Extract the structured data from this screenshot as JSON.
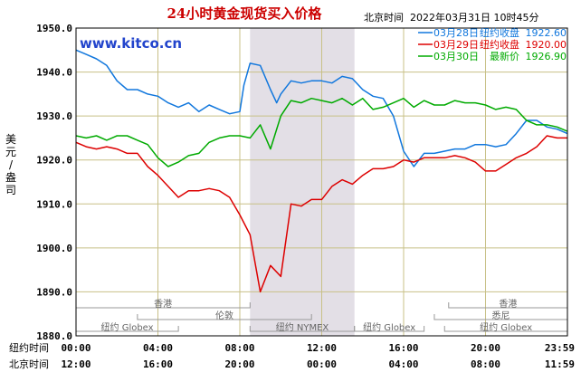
{
  "chart_data": {
    "type": "line",
    "title": "24小时黄金现货买入价格",
    "datetime": "北京时间  2022年03月31日 10时45分",
    "brand": "www.kitco.cn",
    "ylabel": "美元/盎司",
    "ylim": [
      1880,
      1950
    ],
    "y_ticks": [
      "1950.0",
      "1940.0",
      "1930.0",
      "1920.0",
      "1910.0",
      "1900.0",
      "1890.0",
      "1880.0"
    ],
    "x_ticks": [
      0,
      4,
      8,
      12,
      16,
      20,
      24
    ],
    "x_row_labels": [
      "纽约时间",
      "北京时间"
    ],
    "x_tick_labels_ny": [
      "00:00",
      "04:00",
      "08:00",
      "12:00",
      "16:00",
      "20:00",
      "23:59"
    ],
    "x_tick_labels_bj": [
      "12:00",
      "16:00",
      "20:00",
      "00:00",
      "04:00",
      "08:00",
      "11:59"
    ],
    "shaded_range_ny_hours": [
      8.5,
      13.6
    ],
    "grid": true,
    "legend_position": "top-right",
    "markets": [
      {
        "name": "香港",
        "start": 0,
        "end": 8.5,
        "row": 0
      },
      {
        "name": "伦敦",
        "start": 3,
        "end": 11.5,
        "row": 1
      },
      {
        "name": "纽约 Globex",
        "start": 0,
        "end": 5,
        "row": 2
      },
      {
        "name": "纽约 NYMEX",
        "start": 8.5,
        "end": 13.6,
        "row": 2
      },
      {
        "name": "纽约 Globex",
        "start": 13.6,
        "end": 17,
        "row": 2
      },
      {
        "name": "香港",
        "start": 18.2,
        "end": 24,
        "row": 0
      },
      {
        "name": "悉尼",
        "start": 17.5,
        "end": 24,
        "row": 1
      },
      {
        "name": "纽约 Globex",
        "start": 18,
        "end": 24,
        "row": 2
      }
    ],
    "series": [
      {
        "name": "03月28日",
        "legend_caption": "纽约收盘",
        "legend_value": "1922.60",
        "color": "#1177dd",
        "points": [
          [
            0,
            1945
          ],
          [
            0.5,
            1944
          ],
          [
            1,
            1943
          ],
          [
            1.5,
            1941.5
          ],
          [
            2,
            1938
          ],
          [
            2.5,
            1936
          ],
          [
            3,
            1936
          ],
          [
            3.5,
            1935
          ],
          [
            4,
            1934.5
          ],
          [
            4.5,
            1933
          ],
          [
            5,
            1932
          ],
          [
            5.5,
            1933
          ],
          [
            6,
            1931
          ],
          [
            6.5,
            1932.5
          ],
          [
            7,
            1931.5
          ],
          [
            7.5,
            1930.5
          ],
          [
            8,
            1931
          ],
          [
            8.2,
            1937
          ],
          [
            8.5,
            1942
          ],
          [
            9,
            1941.5
          ],
          [
            9.5,
            1936
          ],
          [
            9.8,
            1933
          ],
          [
            10,
            1935
          ],
          [
            10.5,
            1938
          ],
          [
            11,
            1937.5
          ],
          [
            11.5,
            1938
          ],
          [
            12,
            1938
          ],
          [
            12.5,
            1937.5
          ],
          [
            13,
            1939
          ],
          [
            13.5,
            1938.5
          ],
          [
            14,
            1936
          ],
          [
            14.5,
            1934.5
          ],
          [
            15,
            1934
          ],
          [
            15.5,
            1930
          ],
          [
            16,
            1922
          ],
          [
            16.5,
            1918.5
          ],
          [
            17,
            1921.5
          ],
          [
            17.5,
            1921.5
          ],
          [
            18,
            1922
          ],
          [
            18.5,
            1922.5
          ],
          [
            19,
            1922.5
          ],
          [
            19.5,
            1923.5
          ],
          [
            20,
            1923.5
          ],
          [
            20.5,
            1923
          ],
          [
            21,
            1923.5
          ],
          [
            21.5,
            1926
          ],
          [
            22,
            1929
          ],
          [
            22.5,
            1929
          ],
          [
            23,
            1927.5
          ],
          [
            23.5,
            1927
          ],
          [
            24,
            1926
          ]
        ]
      },
      {
        "name": "03月29日",
        "legend_caption": "纽约收盘",
        "legend_value": "1920.00",
        "color": "#dd0000",
        "points": [
          [
            0,
            1924
          ],
          [
            0.5,
            1923
          ],
          [
            1,
            1922.5
          ],
          [
            1.5,
            1923
          ],
          [
            2,
            1922.5
          ],
          [
            2.5,
            1921.5
          ],
          [
            3,
            1921.5
          ],
          [
            3.5,
            1918.5
          ],
          [
            4,
            1916.5
          ],
          [
            4.5,
            1914
          ],
          [
            5,
            1911.5
          ],
          [
            5.5,
            1913
          ],
          [
            6,
            1913
          ],
          [
            6.5,
            1913.5
          ],
          [
            7,
            1913
          ],
          [
            7.5,
            1911.5
          ],
          [
            8,
            1907.5
          ],
          [
            8.5,
            1903
          ],
          [
            9,
            1890
          ],
          [
            9.5,
            1896
          ],
          [
            10,
            1893.5
          ],
          [
            10.5,
            1910
          ],
          [
            11,
            1909.5
          ],
          [
            11.5,
            1911
          ],
          [
            12,
            1911
          ],
          [
            12.5,
            1914
          ],
          [
            13,
            1915.5
          ],
          [
            13.5,
            1914.5
          ],
          [
            14,
            1916.5
          ],
          [
            14.5,
            1918
          ],
          [
            15,
            1918
          ],
          [
            15.5,
            1918.5
          ],
          [
            16,
            1920
          ],
          [
            16.5,
            1919.5
          ],
          [
            17,
            1920.5
          ],
          [
            17.5,
            1920.5
          ],
          [
            18,
            1920.5
          ],
          [
            18.5,
            1921
          ],
          [
            19,
            1920.5
          ],
          [
            19.5,
            1919.5
          ],
          [
            20,
            1917.5
          ],
          [
            20.5,
            1917.5
          ],
          [
            21,
            1919
          ],
          [
            21.5,
            1920.5
          ],
          [
            22,
            1921.5
          ],
          [
            22.5,
            1923
          ],
          [
            23,
            1925.5
          ],
          [
            23.5,
            1925
          ],
          [
            24,
            1925
          ]
        ]
      },
      {
        "name": "03月30日",
        "legend_caption": "最新价",
        "legend_value": "1926.90",
        "color": "#00aa00",
        "points": [
          [
            0,
            1925.5
          ],
          [
            0.5,
            1925
          ],
          [
            1,
            1925.5
          ],
          [
            1.5,
            1924.5
          ],
          [
            2,
            1925.5
          ],
          [
            2.5,
            1925.5
          ],
          [
            3,
            1924.5
          ],
          [
            3.5,
            1923.5
          ],
          [
            4,
            1920.5
          ],
          [
            4.5,
            1918.5
          ],
          [
            5,
            1919.5
          ],
          [
            5.5,
            1921
          ],
          [
            6,
            1921.5
          ],
          [
            6.5,
            1924
          ],
          [
            7,
            1925
          ],
          [
            7.5,
            1925.5
          ],
          [
            8,
            1925.5
          ],
          [
            8.5,
            1925
          ],
          [
            9,
            1928
          ],
          [
            9.5,
            1922.5
          ],
          [
            10,
            1930
          ],
          [
            10.5,
            1933.5
          ],
          [
            11,
            1933
          ],
          [
            11.5,
            1934
          ],
          [
            12,
            1933.5
          ],
          [
            12.5,
            1933
          ],
          [
            13,
            1934
          ],
          [
            13.5,
            1932.5
          ],
          [
            14,
            1934
          ],
          [
            14.5,
            1931.5
          ],
          [
            15,
            1932
          ],
          [
            15.5,
            1933
          ],
          [
            16,
            1934
          ],
          [
            16.5,
            1932
          ],
          [
            17,
            1933.5
          ],
          [
            17.5,
            1932.5
          ],
          [
            18,
            1932.5
          ],
          [
            18.5,
            1933.5
          ],
          [
            19,
            1933
          ],
          [
            19.5,
            1933
          ],
          [
            20,
            1932.5
          ],
          [
            20.5,
            1931.5
          ],
          [
            21,
            1932
          ],
          [
            21.5,
            1931.5
          ],
          [
            22,
            1929
          ],
          [
            22.5,
            1928
          ],
          [
            23,
            1928
          ],
          [
            23.5,
            1927.5
          ],
          [
            24,
            1926.5
          ]
        ]
      }
    ]
  }
}
